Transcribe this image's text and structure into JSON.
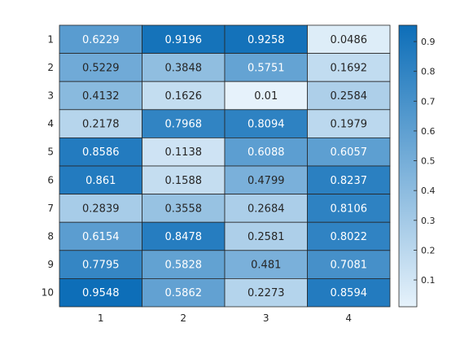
{
  "chart_data": {
    "type": "heatmap",
    "title": "",
    "xlabel": "",
    "ylabel": "",
    "x_categories": [
      "1",
      "2",
      "3",
      "4"
    ],
    "y_categories": [
      "1",
      "2",
      "3",
      "4",
      "5",
      "6",
      "7",
      "8",
      "9",
      "10"
    ],
    "values": [
      [
        0.6229,
        0.9196,
        0.9258,
        0.0486
      ],
      [
        0.5229,
        0.3848,
        0.5751,
        0.1692
      ],
      [
        0.4132,
        0.1626,
        0.01,
        0.2584
      ],
      [
        0.2178,
        0.7968,
        0.8094,
        0.1979
      ],
      [
        0.8586,
        0.1138,
        0.6088,
        0.6057
      ],
      [
        0.861,
        0.1588,
        0.4799,
        0.8237
      ],
      [
        0.2839,
        0.3558,
        0.2684,
        0.8106
      ],
      [
        0.6154,
        0.8478,
        0.2581,
        0.8022
      ],
      [
        0.7795,
        0.5828,
        0.481,
        0.7081
      ],
      [
        0.9548,
        0.5862,
        0.2273,
        0.8594
      ]
    ],
    "cell_labels": [
      [
        "0.6229",
        "0.9196",
        "0.9258",
        "0.0486"
      ],
      [
        "0.5229",
        "0.3848",
        "0.5751",
        "0.1692"
      ],
      [
        "0.4132",
        "0.1626",
        "0.01",
        "0.2584"
      ],
      [
        "0.2178",
        "0.7968",
        "0.8094",
        "0.1979"
      ],
      [
        "0.8586",
        "0.1138",
        "0.6088",
        "0.6057"
      ],
      [
        "0.861",
        "0.1588",
        "0.4799",
        "0.8237"
      ],
      [
        "0.2839",
        "0.3558",
        "0.2684",
        "0.8106"
      ],
      [
        "0.6154",
        "0.8478",
        "0.2581",
        "0.8022"
      ],
      [
        "0.7795",
        "0.5828",
        "0.481",
        "0.7081"
      ],
      [
        "0.9548",
        "0.5862",
        "0.2273",
        "0.8594"
      ]
    ],
    "colorbar": {
      "range": [
        0.01,
        0.9548
      ],
      "ticks": [
        "0.1",
        "0.2",
        "0.3",
        "0.4",
        "0.5",
        "0.6",
        "0.7",
        "0.8",
        "0.9"
      ],
      "placement": "right"
    },
    "colormap": {
      "low": "#e6f2fb",
      "high": "#0d6eb8"
    },
    "grid": true
  }
}
